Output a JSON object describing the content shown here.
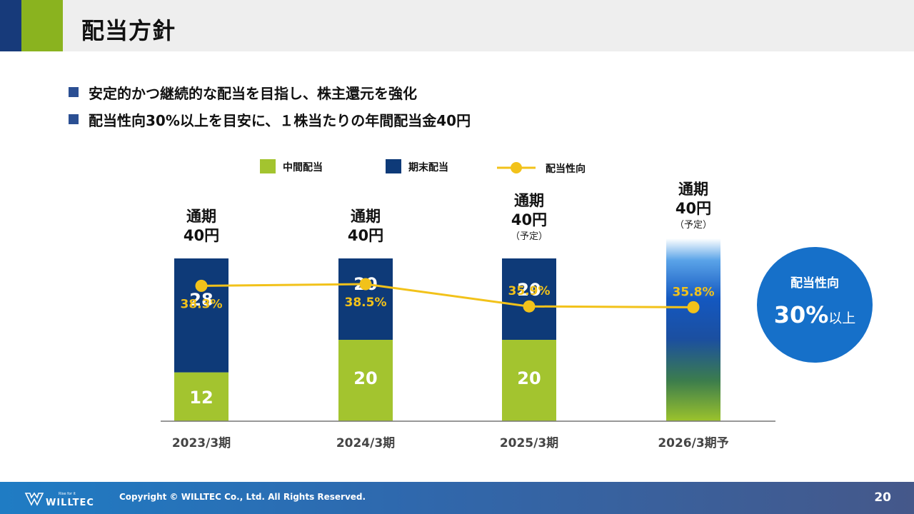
{
  "header": {
    "title": "配当方針"
  },
  "bullets": [
    "安定的かつ継続的な配当を目指し、株主還元を強化",
    "配当性向30%以上を目安に、１株当たりの年間配当金40円"
  ],
  "chart_data": {
    "type": "bar",
    "categories": [
      "2023/3期",
      "2024/3期",
      "2025/3期",
      "2026/3期予"
    ],
    "series": [
      {
        "name": "中間配当",
        "values": [
          12,
          20,
          20,
          null
        ],
        "color": "#a3c42f"
      },
      {
        "name": "期末配当",
        "values": [
          28,
          20,
          20,
          null
        ],
        "color": "#0e3a78"
      }
    ],
    "line_series": {
      "name": "配当性向",
      "values": [
        38.3,
        38.5,
        35.9,
        35.8
      ],
      "labels": [
        "38.3%",
        "38.5%",
        "35.9%",
        "35.8%"
      ],
      "color": "#f2c21a"
    },
    "forecast_total": 40,
    "top_labels": [
      {
        "line1": "通期",
        "line2": "40円",
        "note": ""
      },
      {
        "line1": "通期",
        "line2": "40円",
        "note": ""
      },
      {
        "line1": "通期",
        "line2": "40円",
        "note": "（予定）"
      },
      {
        "line1": "通期",
        "line2": "40円",
        "note": "（予定）"
      }
    ],
    "ylim": [
      0,
      40
    ],
    "grid": false,
    "legend_position": "top-center"
  },
  "policy_badge": {
    "title": "配当性向",
    "value": "30%",
    "suffix": "以上",
    "color": "#1670c9"
  },
  "footer": {
    "logo_text": "WILLTEC",
    "logo_tagline": "Rise for it",
    "copyright": "Copyright © WILLTEC Co., Ltd. All Rights Reserved.",
    "page": "20"
  }
}
